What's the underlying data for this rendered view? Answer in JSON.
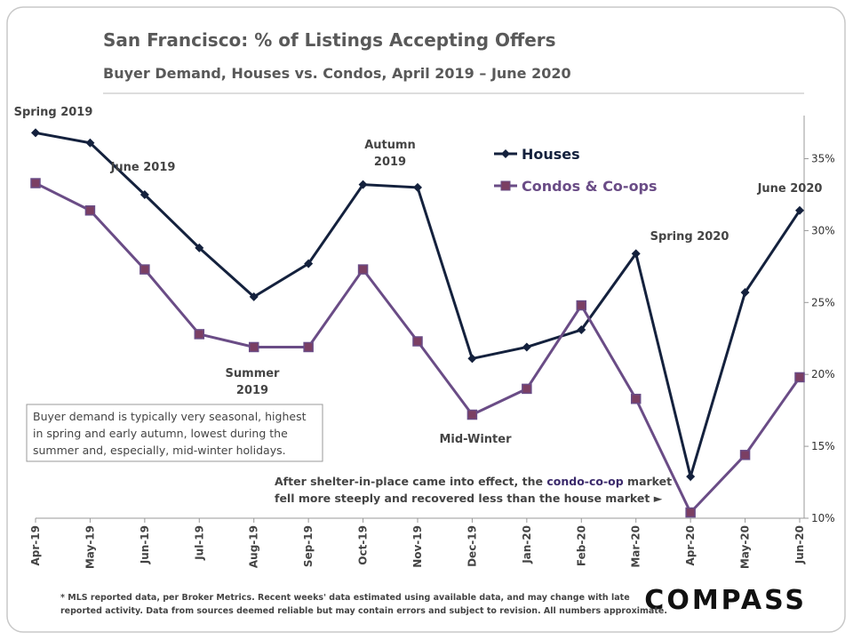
{
  "chart_data": {
    "type": "line",
    "title": "San Francisco: % of Listings Accepting Offers",
    "subtitle": "Buyer Demand, Houses vs. Condos, April 2019 – June 2020",
    "categories": [
      "Apr-19",
      "May-19",
      "Jun-19",
      "Jul-19",
      "Aug-19",
      "Sep-19",
      "Oct-19",
      "Nov-19",
      "Dec-19",
      "Jan-20",
      "Feb-20",
      "Mar-20",
      "Apr-20",
      "May-20",
      "Jun-20"
    ],
    "series": [
      {
        "name": "Houses",
        "color": "#14213d",
        "marker": "diamond",
        "values": [
          36.8,
          36.1,
          32.5,
          28.8,
          25.4,
          27.7,
          33.2,
          33.0,
          21.1,
          21.9,
          23.1,
          28.4,
          12.9,
          25.7,
          31.4
        ]
      },
      {
        "name": "Condos & Co-ops",
        "color": "#6a4c86",
        "marker": "square",
        "values": [
          33.3,
          31.4,
          27.3,
          22.8,
          21.9,
          21.9,
          27.3,
          22.3,
          17.2,
          19.0,
          24.8,
          18.3,
          10.4,
          14.4,
          19.8
        ]
      }
    ],
    "ylim": [
      10,
      38
    ],
    "yticks": [
      {
        "value": 10,
        "label": "10%"
      },
      {
        "value": 15,
        "label": "15%"
      },
      {
        "value": 20,
        "label": "20%"
      },
      {
        "value": 25,
        "label": "25%"
      },
      {
        "value": 30,
        "label": "30%"
      },
      {
        "value": 35,
        "label": "35%"
      }
    ],
    "annotations": [
      [
        "Spring 2019"
      ],
      [
        "June 2019"
      ],
      [
        "Summer",
        "2019"
      ],
      [
        "Autumn",
        "2019"
      ],
      [
        "Mid-Winter"
      ],
      [
        "Spring 2020"
      ],
      [
        "June 2020"
      ]
    ],
    "box": [
      "Buyer demand is typically very seasonal, highest",
      "in spring and early autumn, lowest during the",
      "summer and, especially, mid-winter holidays."
    ],
    "note": [
      [
        "After shelter-in-place came into effect, the ",
        "condo-co-op",
        " market"
      ],
      [
        "fell more steeply and recovered less than the house market ►"
      ]
    ],
    "footnote": [
      "* MLS reported data, per Broker Metrics. Recent weeks' data estimated using available data, and may change with late",
      "reported activity. Data from sources deemed reliable but may contain errors and subject to revision. All numbers approximate."
    ],
    "brand": "COMPASS"
  }
}
